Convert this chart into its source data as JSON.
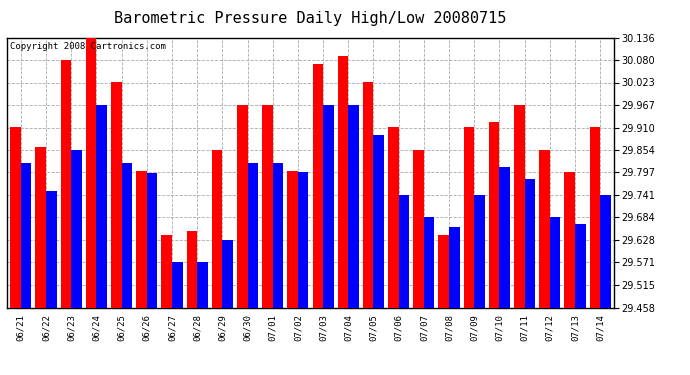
{
  "title": "Barometric Pressure Daily High/Low 20080715",
  "copyright": "Copyright 2008 Cartronics.com",
  "categories": [
    "06/21",
    "06/22",
    "06/23",
    "06/24",
    "06/25",
    "06/26",
    "06/27",
    "06/28",
    "06/29",
    "06/30",
    "07/01",
    "07/02",
    "07/03",
    "07/04",
    "07/05",
    "07/06",
    "07/07",
    "07/08",
    "07/09",
    "07/10",
    "07/11",
    "07/12",
    "07/13",
    "07/14"
  ],
  "highs": [
    29.91,
    29.86,
    30.08,
    30.136,
    30.023,
    29.8,
    29.64,
    29.65,
    29.854,
    29.967,
    29.967,
    29.8,
    30.07,
    30.09,
    30.023,
    29.91,
    29.854,
    29.64,
    29.91,
    29.923,
    29.967,
    29.854,
    29.797,
    29.91
  ],
  "lows": [
    29.82,
    29.75,
    29.854,
    29.967,
    29.82,
    29.795,
    29.571,
    29.571,
    29.628,
    29.82,
    29.82,
    29.797,
    29.967,
    29.967,
    29.892,
    29.741,
    29.684,
    29.66,
    29.741,
    29.81,
    29.78,
    29.684,
    29.667,
    29.741
  ],
  "bar_color_high": "#ff0000",
  "bar_color_low": "#0000ff",
  "ylim_min": 29.458,
  "ylim_max": 30.136,
  "yticks": [
    29.458,
    29.515,
    29.571,
    29.628,
    29.684,
    29.741,
    29.797,
    29.854,
    29.91,
    29.967,
    30.023,
    30.08,
    30.136
  ],
  "bg_color": "#ffffff",
  "grid_color": "#aaaaaa",
  "title_fontsize": 11,
  "copyright_fontsize": 6.5,
  "bar_width": 0.42,
  "fig_width": 6.9,
  "fig_height": 3.75,
  "dpi": 100
}
